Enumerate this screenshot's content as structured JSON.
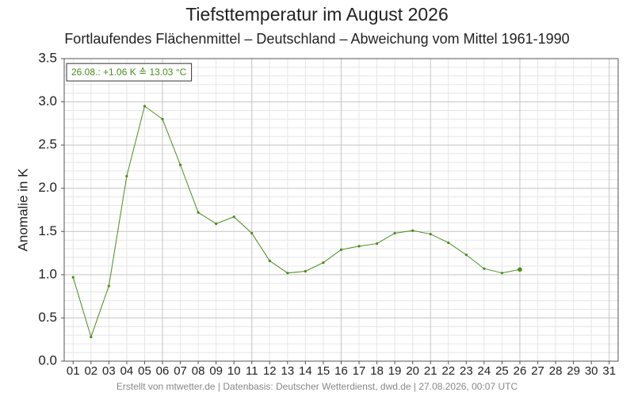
{
  "chart_data": {
    "type": "line",
    "title": "Tiefsttemperatur im August 2026",
    "subtitle": "Fortlaufendes Flächenmittel – Deutschland – Abweichung vom Mittel 1961-1990",
    "y_label": "Anomalie in K",
    "annotation": "26.08.: +1.06 K ≙ 13.03 °C",
    "footer": "Erstellt von mtwetter.de | Datenbasis: Deutscher Wetterdienst, dwd.de | 27.08.2026, 00:07 UTC",
    "categories": [
      "01",
      "02",
      "03",
      "04",
      "05",
      "06",
      "07",
      "08",
      "09",
      "10",
      "11",
      "12",
      "13",
      "14",
      "15",
      "16",
      "17",
      "18",
      "19",
      "20",
      "21",
      "22",
      "23",
      "24",
      "25",
      "26",
      "27",
      "28",
      "29",
      "30",
      "31"
    ],
    "series": [
      {
        "name": "Anomalie",
        "color": "#4a8c1c",
        "values": [
          0.97,
          0.28,
          0.87,
          2.14,
          2.95,
          2.8,
          2.27,
          1.72,
          1.59,
          1.67,
          1.48,
          1.16,
          1.02,
          1.04,
          1.14,
          1.29,
          1.33,
          1.36,
          1.48,
          1.51,
          1.47,
          1.37,
          1.23,
          1.07,
          1.02,
          1.06,
          null,
          null,
          null,
          null,
          null
        ]
      }
    ],
    "ylim": [
      0,
      3.5
    ],
    "yticks": [
      {
        "value": 0,
        "label": "0.0"
      },
      {
        "value": 0.5,
        "label": "0.5"
      },
      {
        "value": 1,
        "label": "1.0"
      },
      {
        "value": 1.5,
        "label": "1.5"
      },
      {
        "value": 2,
        "label": "2.0"
      },
      {
        "value": 2.5,
        "label": "2.5"
      },
      {
        "value": 3,
        "label": "3.0"
      },
      {
        "value": 3.5,
        "label": "3.5"
      }
    ],
    "grid": true
  }
}
